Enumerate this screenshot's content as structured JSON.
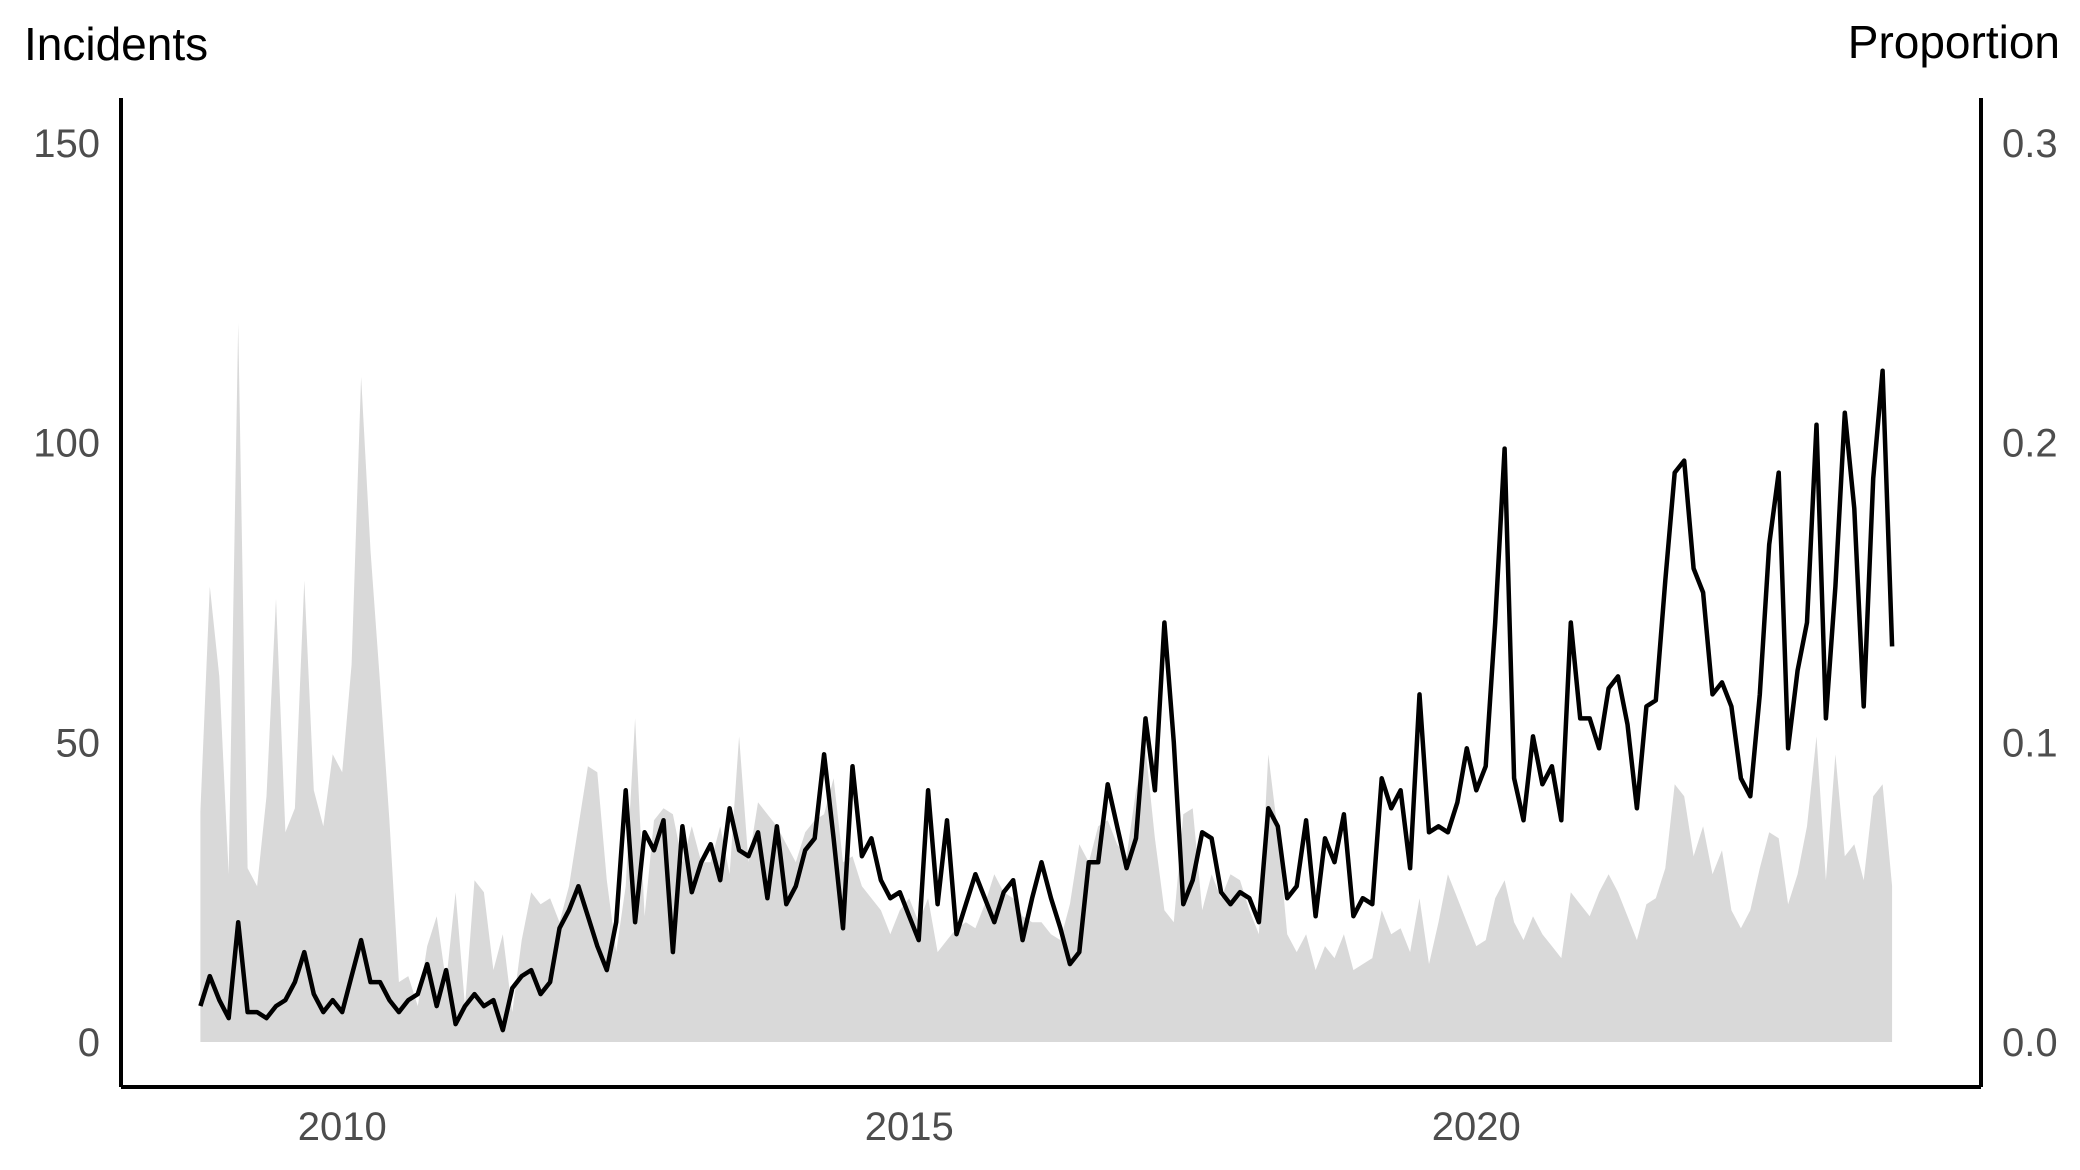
{
  "chart_data": {
    "type": "line",
    "title": "",
    "xlabel": "",
    "ylabel": "Incidents",
    "y2label": "Proportion",
    "x_domain": [
      2008.05,
      2024.45
    ],
    "xlim": [
      2008.05,
      2024.45
    ],
    "ylim": [
      -7.5,
      157.5
    ],
    "y2lim": [
      -0.015,
      0.315
    ],
    "xticks": [
      2010,
      2015,
      2020
    ],
    "xtick_labels": [
      "2010",
      "2015",
      "2020"
    ],
    "yticks": [
      0,
      50,
      100,
      150
    ],
    "ytick_labels": [
      "0",
      "50",
      "100",
      "150"
    ],
    "y2ticks": [
      0.0,
      0.1,
      0.2,
      0.3
    ],
    "y2tick_labels": [
      "0.0",
      "0.1",
      "0.2",
      "0.3"
    ],
    "grid": false,
    "legend": "none",
    "series": [
      {
        "type": "area",
        "axis": "right",
        "color": "#d9d9d9",
        "x_start": 2008.75,
        "x_step": 0.08333,
        "values": [
          0.077,
          0.152,
          0.122,
          0.056,
          0.24,
          0.058,
          0.052,
          0.082,
          0.148,
          0.07,
          0.078,
          0.154,
          0.084,
          0.072,
          0.096,
          0.09,
          0.126,
          0.222,
          0.164,
          0.12,
          0.074,
          0.02,
          0.022,
          0.012,
          0.032,
          0.042,
          0.02,
          0.05,
          0.012,
          0.054,
          0.05,
          0.024,
          0.036,
          0.01,
          0.034,
          0.05,
          0.046,
          0.048,
          0.04,
          0.052,
          0.072,
          0.092,
          0.09,
          0.054,
          0.03,
          0.052,
          0.108,
          0.042,
          0.074,
          0.078,
          0.076,
          0.06,
          0.072,
          0.06,
          0.06,
          0.072,
          0.056,
          0.102,
          0.06,
          0.08,
          0.076,
          0.072,
          0.066,
          0.06,
          0.07,
          0.074,
          0.076,
          0.088,
          0.06,
          0.062,
          0.052,
          0.048,
          0.044,
          0.036,
          0.044,
          0.048,
          0.04,
          0.048,
          0.03,
          0.034,
          0.038,
          0.04,
          0.038,
          0.046,
          0.056,
          0.05,
          0.048,
          0.042,
          0.04,
          0.04,
          0.036,
          0.034,
          0.046,
          0.066,
          0.06,
          0.072,
          0.074,
          0.066,
          0.062,
          0.084,
          0.098,
          0.068,
          0.044,
          0.04,
          0.076,
          0.078,
          0.044,
          0.056,
          0.048,
          0.056,
          0.054,
          0.044,
          0.036,
          0.096,
          0.07,
          0.036,
          0.03,
          0.036,
          0.024,
          0.032,
          0.028,
          0.036,
          0.024,
          0.026,
          0.028,
          0.044,
          0.036,
          0.038,
          0.03,
          0.048,
          0.026,
          0.04,
          0.056,
          0.048,
          0.04,
          0.032,
          0.034,
          0.048,
          0.054,
          0.04,
          0.034,
          0.042,
          0.036,
          0.032,
          0.028,
          0.05,
          0.046,
          0.042,
          0.05,
          0.056,
          0.05,
          0.042,
          0.034,
          0.046,
          0.048,
          0.058,
          0.086,
          0.082,
          0.062,
          0.072,
          0.056,
          0.064,
          0.044,
          0.038,
          0.044,
          0.058,
          0.07,
          0.068,
          0.046,
          0.056,
          0.072,
          0.102,
          0.054,
          0.096,
          0.062,
          0.066,
          0.054,
          0.082,
          0.086,
          0.052
        ]
      },
      {
        "type": "line",
        "axis": "left",
        "color": "#000000",
        "x_start": 2008.75,
        "x_step": 0.08333,
        "values": [
          6,
          11,
          7,
          4,
          20,
          5,
          5,
          4,
          6,
          7,
          10,
          15,
          8,
          5,
          7,
          5,
          11,
          17,
          10,
          10,
          7,
          5,
          7,
          8,
          13,
          6,
          12,
          3,
          6,
          8,
          6,
          7,
          2,
          9,
          11,
          12,
          8,
          10,
          19,
          22,
          26,
          21,
          16,
          12,
          20,
          42,
          20,
          35,
          32,
          37,
          15,
          36,
          25,
          30,
          33,
          27,
          39,
          32,
          31,
          35,
          24,
          36,
          23,
          26,
          32,
          34,
          48,
          34,
          19,
          46,
          31,
          34,
          27,
          24,
          25,
          21,
          17,
          42,
          23,
          37,
          18,
          23,
          28,
          24,
          20,
          25,
          27,
          17,
          24,
          30,
          24,
          19,
          13,
          15,
          30,
          30,
          43,
          36,
          29,
          34,
          54,
          42,
          70,
          50,
          23,
          27,
          35,
          34,
          25,
          23,
          25,
          24,
          20,
          39,
          36,
          24,
          26,
          37,
          21,
          34,
          30,
          38,
          21,
          24,
          23,
          44,
          39,
          42,
          29,
          58,
          35,
          36,
          35,
          40,
          49,
          42,
          46,
          70,
          99,
          44,
          37,
          51,
          43,
          46,
          37,
          70,
          54,
          54,
          49,
          59,
          61,
          53,
          39,
          56,
          57,
          77,
          95,
          97,
          79,
          75,
          58,
          60,
          56,
          44,
          41,
          58,
          83,
          95,
          49,
          62,
          70,
          103,
          54,
          76,
          105,
          89,
          56,
          94,
          112,
          66
        ]
      }
    ]
  }
}
